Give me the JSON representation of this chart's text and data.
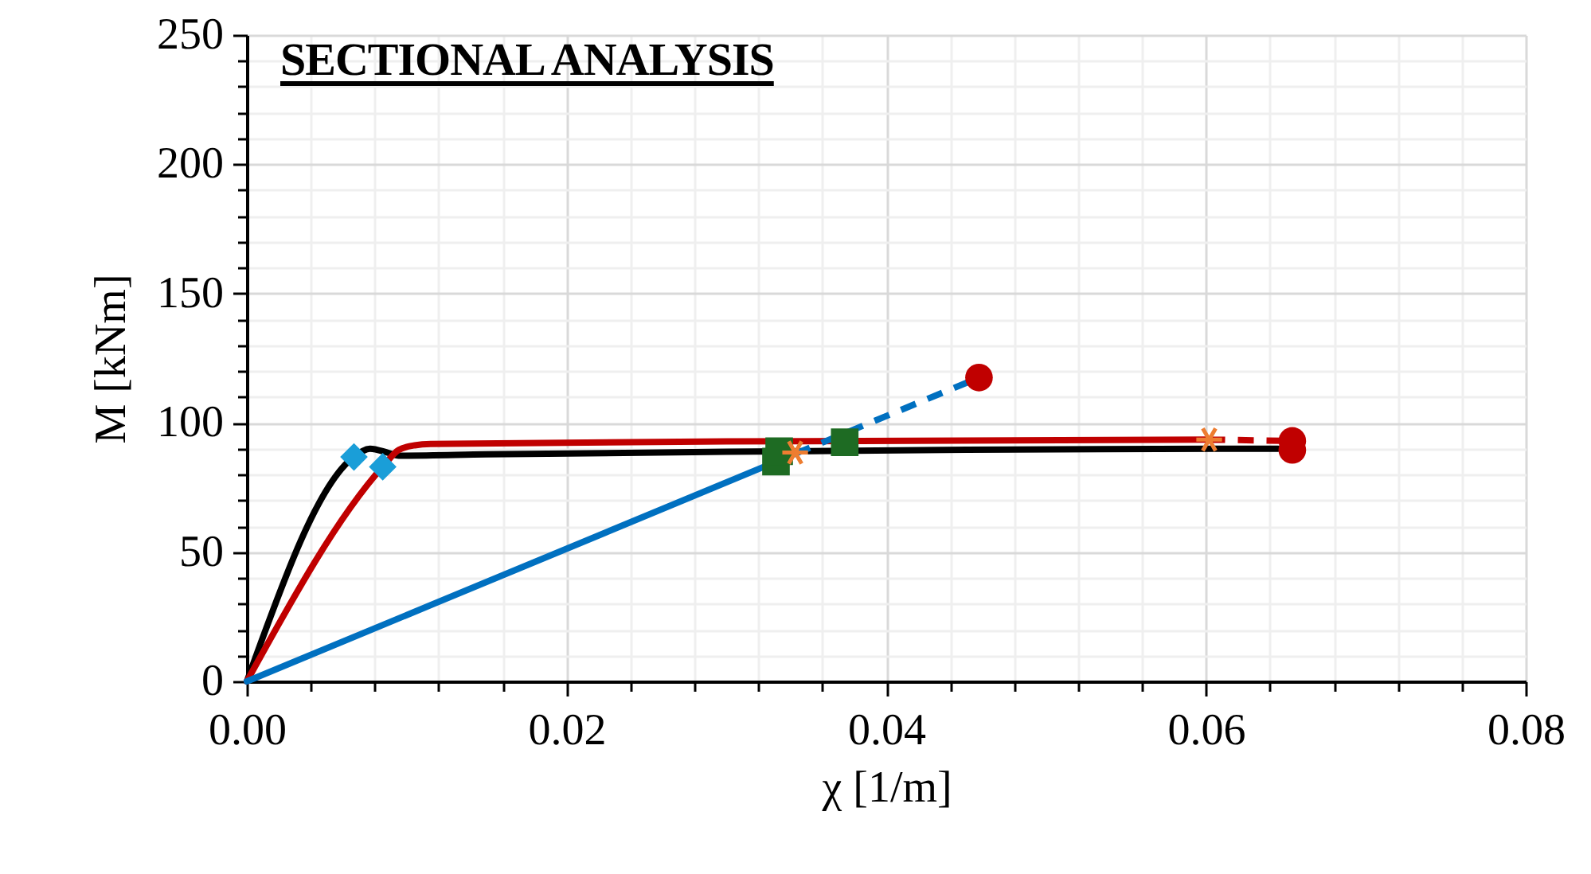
{
  "chart_data": {
    "type": "line",
    "title": "SECTIONAL ANALYSIS",
    "xlabel": "χ [1/m]",
    "ylabel": "M [kNm]",
    "xlim": [
      0,
      0.08
    ],
    "ylim": [
      0,
      250
    ],
    "xticks": [
      {
        "value": 0,
        "label": "0.00"
      },
      {
        "value": 0.004,
        "label": null
      },
      {
        "value": 0.008,
        "label": null
      },
      {
        "value": 0.012,
        "label": null
      },
      {
        "value": 0.016,
        "label": null
      },
      {
        "value": 0.02,
        "label": "0.02"
      },
      {
        "value": 0.024,
        "label": null
      },
      {
        "value": 0.028,
        "label": null
      },
      {
        "value": 0.032,
        "label": null
      },
      {
        "value": 0.036,
        "label": null
      },
      {
        "value": 0.04,
        "label": "0.04"
      },
      {
        "value": 0.044,
        "label": null
      },
      {
        "value": 0.048,
        "label": null
      },
      {
        "value": 0.052,
        "label": null
      },
      {
        "value": 0.056,
        "label": null
      },
      {
        "value": 0.06,
        "label": "0.06"
      },
      {
        "value": 0.064,
        "label": null
      },
      {
        "value": 0.068,
        "label": null
      },
      {
        "value": 0.072,
        "label": null
      },
      {
        "value": 0.076,
        "label": null
      },
      {
        "value": 0.08,
        "label": "0.08"
      }
    ],
    "yticks": [
      0,
      {
        "value": 10,
        "label": null
      },
      {
        "value": 20,
        "label": null
      },
      {
        "value": 30,
        "label": null
      },
      {
        "value": 40,
        "label": null
      },
      50,
      {
        "value": 60,
        "label": null
      },
      {
        "value": 70,
        "label": null
      },
      {
        "value": 80,
        "label": null
      },
      {
        "value": 90,
        "label": null
      },
      100,
      {
        "value": 110,
        "label": null
      },
      {
        "value": 120,
        "label": null
      },
      {
        "value": 130,
        "label": null
      },
      {
        "value": 140,
        "label": null
      },
      150,
      {
        "value": 160,
        "label": null
      },
      {
        "value": 170,
        "label": null
      },
      {
        "value": 180,
        "label": null
      },
      {
        "value": 190,
        "label": null
      },
      200,
      {
        "value": 210,
        "label": null
      },
      {
        "value": 220,
        "label": null
      },
      {
        "value": 230,
        "label": null
      },
      {
        "value": 240,
        "label": null
      },
      250
    ],
    "grid": true,
    "series": [
      {
        "color": "#000000",
        "line_style": "solid",
        "marker": "none",
        "x": [
          0,
          0.0067,
          0.0077,
          0.0088,
          0.0095,
          0.015,
          0.03,
          0.045,
          0.0645
        ],
        "values": [
          0,
          86.8,
          90,
          88.5,
          87.3,
          87.8,
          88.8,
          89.6,
          90
        ]
      },
      {
        "color": "#c00000",
        "line_style": "solid",
        "marker": "none",
        "x": [
          0,
          0.0085,
          0.0095,
          0.0105,
          0.0115,
          0.03,
          0.0602
        ],
        "values": [
          0,
          83,
          89.5,
          91.3,
          91.8,
          92.8,
          93.5
        ]
      },
      {
        "color": "#c00000",
        "line_style": "dashed",
        "marker": "none",
        "x": [
          0.0602,
          0.0654
        ],
        "values": [
          93.5,
          93
        ]
      },
      {
        "color": "#0070c0",
        "line_style": "solid",
        "marker": "none",
        "x": [
          0,
          0.0343
        ],
        "values": [
          0,
          88
        ]
      },
      {
        "color": "#0070c0",
        "line_style": "dashed",
        "marker": "none",
        "x": [
          0.0343,
          0.0458
        ],
        "values": [
          88,
          117.5
        ]
      },
      {
        "type": "scatter",
        "color": "#1a9ed8",
        "marker": "diamond",
        "x": [
          0.0067,
          0.0085
        ],
        "values": [
          86.8,
          83
        ]
      },
      {
        "type": "scatter",
        "color": "#1e6b23",
        "marker": "square",
        "x": [
          0.0331,
          0.0333,
          0.0374
        ],
        "values": [
          85,
          89,
          92.5
        ]
      },
      {
        "type": "scatter",
        "color": "#ed7d31",
        "marker": "cross",
        "x": [
          0.0343,
          0.0602
        ],
        "values": [
          88.5,
          93.5
        ]
      },
      {
        "type": "scatter",
        "color": "#c00000",
        "marker": "circle",
        "x": [
          0.0458,
          0.0654,
          0.0654
        ],
        "values": [
          117.5,
          93,
          89.5
        ]
      }
    ]
  }
}
